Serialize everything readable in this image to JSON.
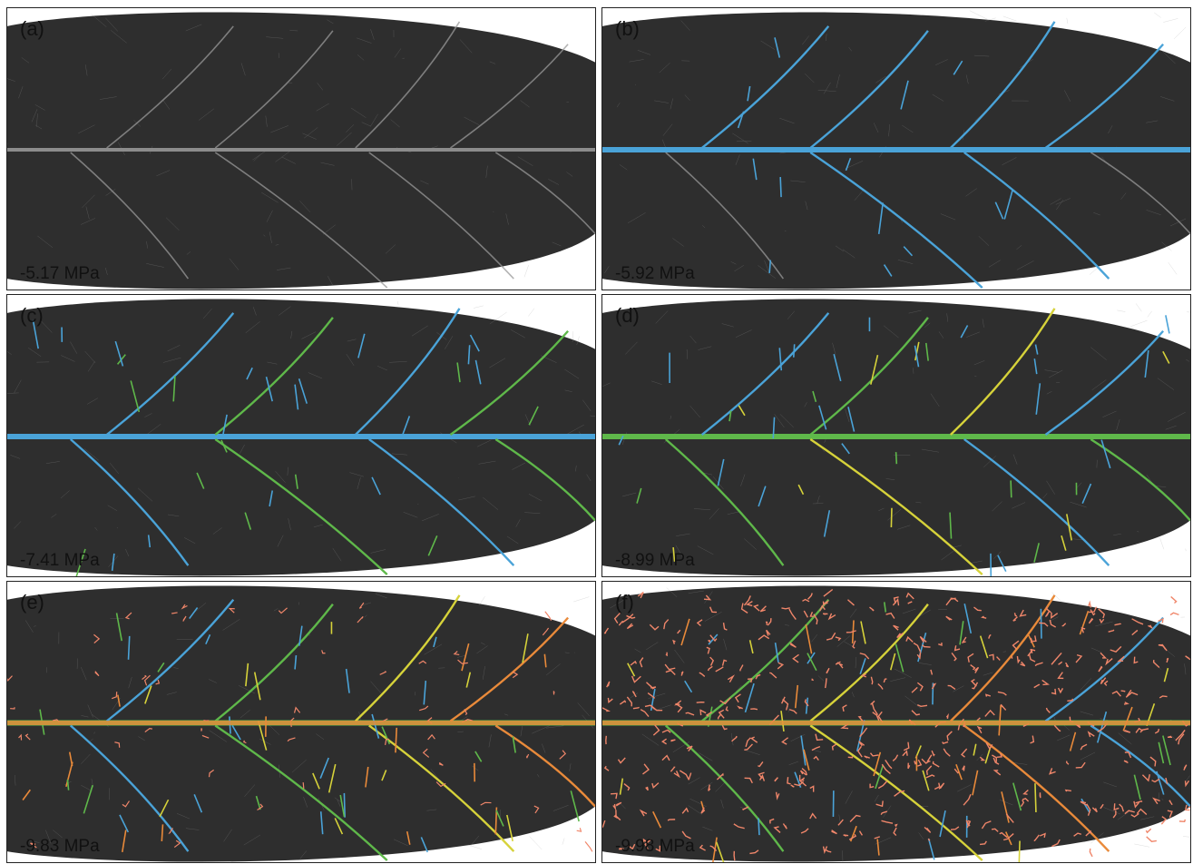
{
  "figure": {
    "panels": [
      {
        "letter": "(a)",
        "pressure": "-5.17 MPa",
        "stage": 0
      },
      {
        "letter": "(b)",
        "pressure": "-5.92 MPa",
        "stage": 1
      },
      {
        "letter": "(c)",
        "pressure": "-7.41 MPa",
        "stage": 2
      },
      {
        "letter": "(d)",
        "pressure": "-8.99 MPa",
        "stage": 3
      },
      {
        "letter": "(e)",
        "pressure": "-9.83 MPa",
        "stage": 4
      },
      {
        "letter": "(f)",
        "pressure": "-9.98 MPa",
        "stage": 5
      }
    ],
    "colors": {
      "leaf": "#2e2e2e",
      "vein": "#9a9a9a",
      "blue": "#4aa3d8",
      "green": "#5fb84a",
      "yellow": "#d6d23a",
      "orange": "#e98a3a",
      "salmon": "#f0866a"
    }
  }
}
